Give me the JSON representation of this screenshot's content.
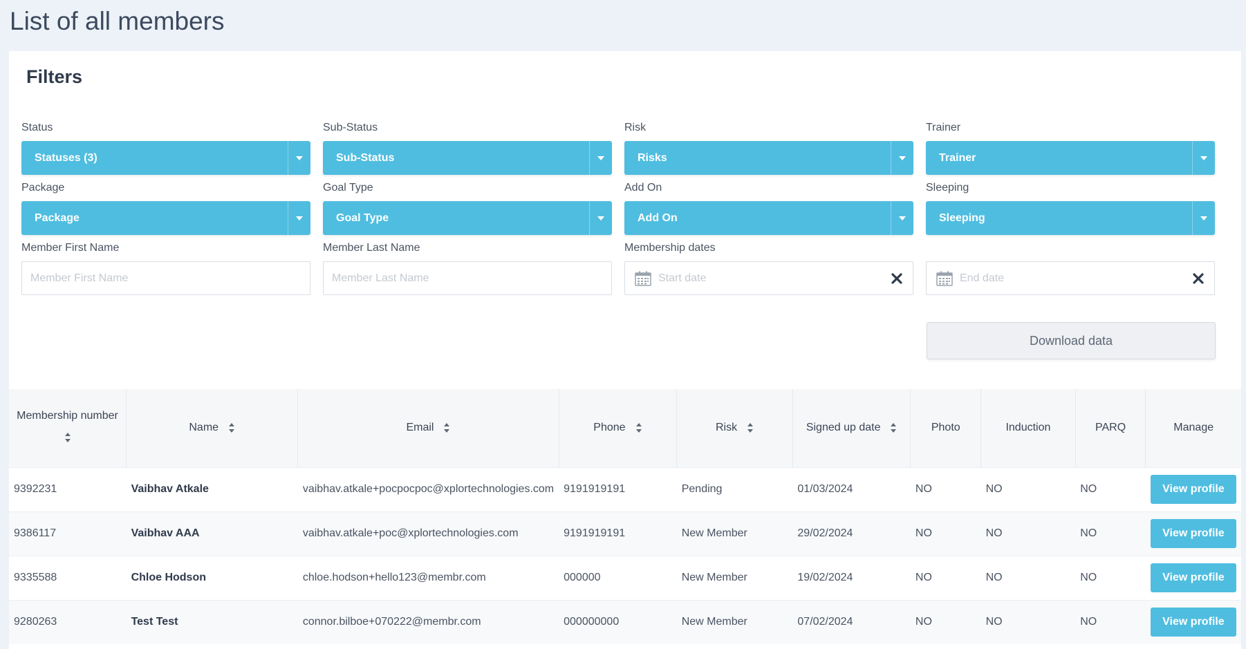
{
  "page": {
    "title": "List of all members"
  },
  "filters": {
    "title": "Filters",
    "status": {
      "label": "Status",
      "value": "Statuses (3)"
    },
    "sub_status": {
      "label": "Sub-Status",
      "value": "Sub-Status"
    },
    "risk": {
      "label": "Risk",
      "value": "Risks"
    },
    "trainer": {
      "label": "Trainer",
      "value": "Trainer"
    },
    "package": {
      "label": "Package",
      "value": "Package"
    },
    "goal_type": {
      "label": "Goal Type",
      "value": "Goal Type"
    },
    "add_on": {
      "label": "Add On",
      "value": "Add On"
    },
    "sleeping": {
      "label": "Sleeping",
      "value": "Sleeping"
    },
    "first_name": {
      "label": "Member First Name",
      "placeholder": "Member First Name",
      "value": ""
    },
    "last_name": {
      "label": "Member Last Name",
      "placeholder": "Member Last Name",
      "value": ""
    },
    "membership_dates": {
      "label": "Membership dates",
      "start_placeholder": "Start date",
      "end_placeholder": "End date"
    },
    "download_label": "Download data"
  },
  "table": {
    "columns": [
      "Membership number",
      "Name",
      "Email",
      "Phone",
      "Risk",
      "Signed up date",
      "Photo",
      "Induction",
      "PARQ",
      "Manage"
    ],
    "rows": [
      {
        "number": "9392231",
        "name": "Vaibhav Atkale",
        "email": "vaibhav.atkale+pocpocpoc@xplortechnologies.com",
        "phone": "9191919191",
        "risk": "Pending",
        "signed_up": "01/03/2024",
        "photo": "NO",
        "induction": "NO",
        "parq": "NO",
        "manage": "View profile"
      },
      {
        "number": "9386117",
        "name": "Vaibhav AAA",
        "email": "vaibhav.atkale+poc@xplortechnologies.com",
        "phone": "9191919191",
        "risk": "New Member",
        "signed_up": "29/02/2024",
        "photo": "NO",
        "induction": "NO",
        "parq": "NO",
        "manage": "View profile"
      },
      {
        "number": "9335588",
        "name": "Chloe Hodson",
        "email": "chloe.hodson+hello123@membr.com",
        "phone": "000000",
        "risk": "New Member",
        "signed_up": "19/02/2024",
        "photo": "NO",
        "induction": "NO",
        "parq": "NO",
        "manage": "View profile"
      },
      {
        "number": "9280263",
        "name": "Test Test",
        "email": "connor.bilboe+070222@membr.com",
        "phone": "000000000",
        "risk": "New Member",
        "signed_up": "07/02/2024",
        "photo": "NO",
        "induction": "NO",
        "parq": "NO",
        "manage": "View profile"
      }
    ]
  },
  "colors": {
    "accent": "#4fbde0",
    "page_bg": "#edf2f8"
  },
  "icons": {
    "dropdown": "caret-down-icon",
    "sort": "sort-icon",
    "calendar": "calendar-icon",
    "clear": "close-icon"
  }
}
